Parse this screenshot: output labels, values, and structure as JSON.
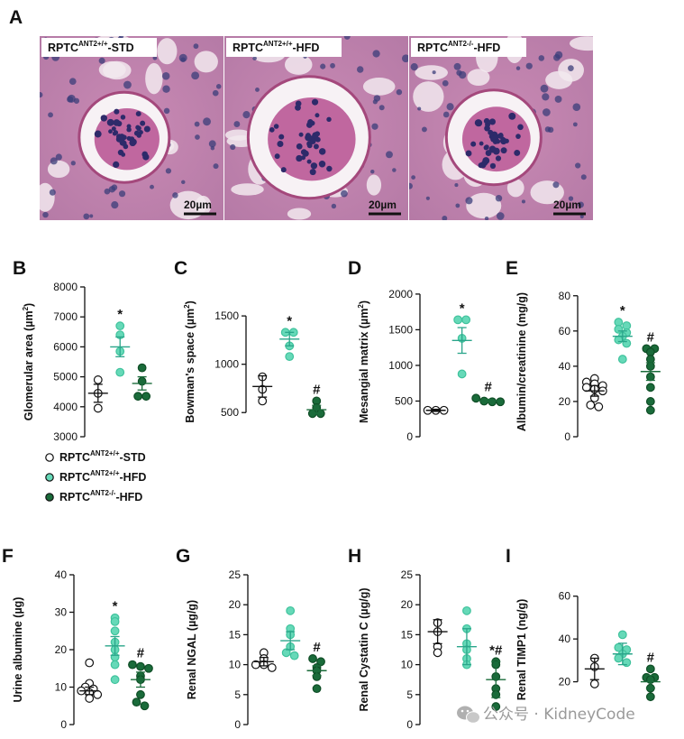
{
  "panel_a": {
    "letter": "A",
    "images": [
      {
        "label": "RPTC",
        "label_sup": "ANT2+/+",
        "label_suffix": "-STD",
        "scale": "20µm",
        "glom_scale": 1.0
      },
      {
        "label": "RPTC",
        "label_sup": "ANT2+/+",
        "label_suffix": "-HFD",
        "scale": "20µm",
        "glom_scale": 1.35
      },
      {
        "label": "RPTC",
        "label_sup": "ANT2-/-",
        "label_suffix": "-HFD",
        "scale": "20µm",
        "glom_scale": 1.05
      }
    ]
  },
  "legend": {
    "items": [
      {
        "group": "RPTC",
        "sup": "ANT2+/+",
        "suffix": "-STD",
        "color": "#ffffff"
      },
      {
        "group": "RPTC",
        "sup": "ANT2+/+",
        "suffix": "-HFD",
        "color": "#66d9b8"
      },
      {
        "group": "RPTC",
        "sup": "ANT2-/-",
        "suffix": "-HFD",
        "color": "#1a6b3a"
      }
    ]
  },
  "colors": {
    "std": "#ffffff",
    "hfd_wt": "#66d9b8",
    "hfd_ko": "#1a6b3a",
    "mean_wt": "#2aa58a",
    "mean_ko": "#1a6b3a",
    "mean_std": "#111111"
  },
  "watermark": "公众号 · KidneyCode",
  "chart_data": [
    {
      "letter": "B",
      "type": "scatter",
      "ylabel": "Glomerular area (µm",
      "ylabel_sup": "2",
      "ylabel_suffix": ")",
      "ylim": [
        3000,
        8000
      ],
      "yticks": [
        3000,
        4000,
        5000,
        6000,
        7000,
        8000
      ],
      "groups": [
        {
          "points": [
            4900,
            4450,
            3950
          ],
          "mean": 4450,
          "err": 300,
          "mark": ""
        },
        {
          "points": [
            6700,
            6400,
            5850,
            5150
          ],
          "mean": 6000,
          "err": 330,
          "mark": "*"
        },
        {
          "points": [
            5300,
            4850,
            4350,
            4350
          ],
          "mean": 4780,
          "err": 220,
          "mark": ""
        }
      ]
    },
    {
      "letter": "C",
      "type": "scatter",
      "ylabel": "Bowman's space (µm",
      "ylabel_sup": "2",
      "ylabel_suffix": ")",
      "ylim": [
        250,
        1800
      ],
      "yticks": [
        500,
        1000,
        1500
      ],
      "groups": [
        {
          "points": [
            870,
            740,
            620
          ],
          "mean": 770,
          "err": 110,
          "mark": ""
        },
        {
          "points": [
            1330,
            1330,
            1190,
            1080
          ],
          "mean": 1260,
          "err": 70,
          "mark": "*"
        },
        {
          "points": [
            620,
            550,
            490,
            490
          ],
          "mean": 530,
          "err": 45,
          "mark": "#"
        }
      ]
    },
    {
      "letter": "D",
      "type": "scatter",
      "ylabel": "Mesangial matrix (µm",
      "ylabel_sup": "2",
      "ylabel_suffix": ")",
      "ylim": [
        0,
        2100
      ],
      "yticks": [
        0,
        500,
        1000,
        1500,
        2000
      ],
      "groups": [
        {
          "points": [
            370,
            370,
            370
          ],
          "mean": 370,
          "err": 15,
          "mark": ""
        },
        {
          "points": [
            1640,
            1640,
            1380,
            880
          ],
          "mean": 1350,
          "err": 180,
          "mark": "*"
        },
        {
          "points": [
            540,
            500,
            490,
            490
          ],
          "mean": 505,
          "err": 20,
          "mark": "#"
        }
      ]
    },
    {
      "letter": "E",
      "type": "scatter",
      "ylabel": "Albumin/creatinine (mg/g)",
      "ylabel_sup": "",
      "ylabel_suffix": "",
      "ylim": [
        0,
        85
      ],
      "yticks": [
        0,
        20,
        40,
        60,
        80
      ],
      "groups": [
        {
          "points": [
            33,
            31,
            30,
            29,
            28,
            27,
            26,
            22,
            18,
            17
          ],
          "mean": 26,
          "err": 3,
          "mark": ""
        },
        {
          "points": [
            65,
            63,
            61,
            59,
            57,
            55,
            53,
            44
          ],
          "mean": 57,
          "err": 3,
          "mark": "*"
        },
        {
          "points": [
            50,
            50,
            48,
            44,
            40,
            34,
            28,
            20,
            15
          ],
          "mean": 37,
          "err": 5,
          "mark": "#"
        }
      ]
    },
    {
      "letter": "F",
      "type": "scatter",
      "ylabel": "Urine albumine (µg)",
      "ylabel_sup": "",
      "ylabel_suffix": "",
      "ylim": [
        0,
        40
      ],
      "yticks": [
        0,
        10,
        20,
        30,
        40
      ],
      "groups": [
        {
          "points": [
            16.5,
            11,
            10,
            9.5,
            9,
            8.5,
            8,
            7
          ],
          "mean": 9,
          "err": 1,
          "mark": ""
        },
        {
          "points": [
            28.5,
            27.5,
            25,
            22,
            20,
            18,
            16,
            12
          ],
          "mean": 21,
          "err": 2.5,
          "mark": "*"
        },
        {
          "points": [
            16,
            15.5,
            15,
            13,
            12,
            8,
            6,
            5
          ],
          "mean": 12,
          "err": 2,
          "mark": "#"
        }
      ]
    },
    {
      "letter": "G",
      "type": "scatter",
      "ylabel": "Renal NGAL (µg/g)",
      "ylabel_sup": "",
      "ylabel_suffix": "",
      "ylim": [
        0,
        25
      ],
      "yticks": [
        0,
        5,
        10,
        15,
        20,
        25
      ],
      "groups": [
        {
          "points": [
            12,
            11,
            10,
            10,
            9.5
          ],
          "mean": 10.5,
          "err": 0.7,
          "mark": ""
        },
        {
          "points": [
            19,
            16,
            15,
            13,
            12,
            11.5
          ],
          "mean": 14,
          "err": 1.5,
          "mark": ""
        },
        {
          "points": [
            11,
            10.5,
            9.5,
            9,
            8,
            6
          ],
          "mean": 9,
          "err": 0.8,
          "mark": "#"
        }
      ]
    },
    {
      "letter": "H",
      "type": "scatter",
      "ylabel": "Renal Cystatin C (µg/g)",
      "ylabel_sup": "",
      "ylabel_suffix": "",
      "ylim": [
        0,
        25
      ],
      "yticks": [
        0,
        5,
        10,
        15,
        20,
        25
      ],
      "groups": [
        {
          "points": [
            17,
            15.5,
            13,
            12
          ],
          "mean": 15.5,
          "err": 2,
          "mark": ""
        },
        {
          "points": [
            19,
            16,
            13.5,
            12.5,
            11,
            10
          ],
          "mean": 13,
          "err": 3,
          "mark": ""
        },
        {
          "points": [
            10.5,
            10,
            8,
            6,
            5,
            3
          ],
          "mean": 7.5,
          "err": 3,
          "mark": "*#"
        }
      ]
    },
    {
      "letter": "I",
      "type": "scatter",
      "ylabel": "Renal TIMP1 (ng/g)",
      "ylabel_sup": "",
      "ylabel_suffix": "",
      "ylim": [
        0,
        70
      ],
      "yticks": [
        20,
        40,
        60
      ],
      "groups": [
        {
          "points": [
            31,
            27,
            19
          ],
          "mean": 26,
          "err": 5,
          "mark": ""
        },
        {
          "points": [
            42,
            36,
            35,
            33,
            31,
            29
          ],
          "mean": 33,
          "err": 5,
          "mark": ""
        },
        {
          "points": [
            26,
            22,
            22,
            21,
            17,
            13
          ],
          "mean": 20,
          "err": 3,
          "mark": "#"
        }
      ]
    }
  ]
}
